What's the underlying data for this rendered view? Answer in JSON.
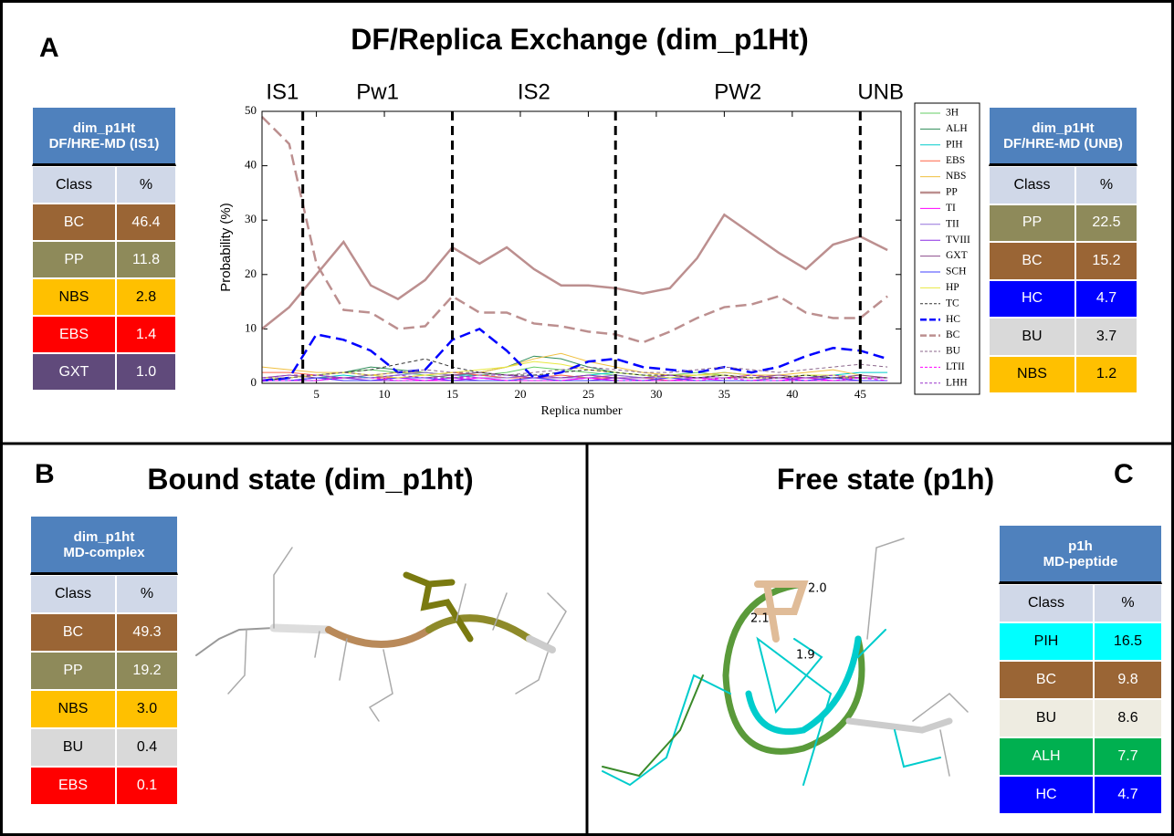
{
  "panels": [
    {
      "letter": "A",
      "title": "DF/Replica Exchange (dim_p1Ht)"
    },
    {
      "letter": "B",
      "title": "Bound state (dim_p1ht)"
    },
    {
      "letter": "C",
      "title": "Free state (p1h)"
    }
  ],
  "tables": [
    {
      "header": [
        "dim_p1Ht",
        "DF/HRE-MD (IS1)"
      ],
      "columns": [
        "Class",
        "%"
      ],
      "rows": [
        {
          "class": "BC",
          "value": "46.4",
          "color": "#9a6535"
        },
        {
          "class": "PP",
          "value": "11.8",
          "color": "#8e8a5a"
        },
        {
          "class": "NBS",
          "value": "2.8",
          "color": "#ffc000"
        },
        {
          "class": "EBS",
          "value": "1.4",
          "color": "#ff0000"
        },
        {
          "class": "GXT",
          "value": "1.0",
          "color": "#604a7b"
        }
      ]
    },
    {
      "header": [
        "dim_p1Ht",
        "DF/HRE-MD (UNB)"
      ],
      "columns": [
        "Class",
        "%"
      ],
      "rows": [
        {
          "class": "PP",
          "value": "22.5",
          "color": "#8e8a5a"
        },
        {
          "class": "BC",
          "value": "15.2",
          "color": "#9a6535"
        },
        {
          "class": "HC",
          "value": "4.7",
          "color": "#0000ff"
        },
        {
          "class": "BU",
          "value": "3.7",
          "color": "#d9d9d9"
        },
        {
          "class": "NBS",
          "value": "1.2",
          "color": "#ffc000"
        }
      ]
    },
    {
      "header": [
        "dim_p1ht",
        "MD-complex"
      ],
      "columns": [
        "Class",
        "%"
      ],
      "rows": [
        {
          "class": "BC",
          "value": "49.3",
          "color": "#9a6535"
        },
        {
          "class": "PP",
          "value": "19.2",
          "color": "#8e8a5a"
        },
        {
          "class": "NBS",
          "value": "3.0",
          "color": "#ffc000"
        },
        {
          "class": "BU",
          "value": "0.4",
          "color": "#d9d9d9"
        },
        {
          "class": "EBS",
          "value": "0.1",
          "color": "#ff0000"
        }
      ]
    },
    {
      "header": [
        "p1h",
        "MD-peptide"
      ],
      "columns": [
        "Class",
        "%"
      ],
      "rows": [
        {
          "class": "PIH",
          "value": "16.5",
          "color": "#00ffff"
        },
        {
          "class": "BC",
          "value": "9.8",
          "color": "#9a6535"
        },
        {
          "class": "BU",
          "value": "8.6",
          "color": "#eeece1"
        },
        {
          "class": "ALH",
          "value": "7.7",
          "color": "#00b050"
        },
        {
          "class": "HC",
          "value": "4.7",
          "color": "#0000ff"
        }
      ]
    }
  ],
  "distance_labels": [
    "2.0",
    "2.1",
    "1.9"
  ],
  "chart_data": {
    "type": "line",
    "xlabel": "Replica number",
    "ylabel": "Probability (%)",
    "xlim": [
      1,
      48
    ],
    "ylim": [
      0,
      50
    ],
    "xticks": [
      5,
      10,
      15,
      20,
      25,
      30,
      35,
      40,
      45
    ],
    "yticks": [
      0,
      10,
      20,
      30,
      40,
      50
    ],
    "vlines": [
      4,
      15,
      27,
      45
    ],
    "regions": [
      "IS1",
      "Pw1",
      "IS2",
      "PW2",
      "UNB"
    ],
    "x": [
      1,
      3,
      5,
      7,
      9,
      11,
      13,
      15,
      17,
      19,
      21,
      23,
      25,
      27,
      29,
      31,
      33,
      35,
      37,
      39,
      41,
      43,
      45,
      47
    ],
    "series": [
      {
        "name": "3H",
        "color": "#66cc66",
        "dashed": false,
        "width": 1,
        "values": [
          1,
          1,
          1.5,
          2,
          2.5,
          2,
          1.5,
          1,
          1.5,
          2,
          3,
          2.5,
          2,
          1.5,
          1,
          1.5,
          2,
          1.5,
          1,
          1,
          1.5,
          1,
          1,
          1
        ]
      },
      {
        "name": "ALH",
        "color": "#2e8b57",
        "dashed": false,
        "width": 1,
        "values": [
          0.5,
          1,
          1.5,
          2,
          3,
          2.5,
          2,
          1.5,
          2,
          3,
          5,
          4.5,
          3,
          2,
          1.5,
          1,
          1,
          1.5,
          1,
          1,
          1.5,
          1.5,
          1,
          1
        ]
      },
      {
        "name": "PIH",
        "color": "#00cccc",
        "dashed": false,
        "width": 1,
        "values": [
          0.5,
          0.5,
          1,
          1.5,
          1,
          1.5,
          2,
          1.5,
          1.5,
          1,
          1,
          1,
          1.5,
          2,
          1.5,
          1,
          1.5,
          2,
          1.5,
          1,
          1,
          1.5,
          2,
          2
        ]
      },
      {
        "name": "EBS",
        "color": "#ff6347",
        "dashed": false,
        "width": 1,
        "values": [
          2,
          2,
          1.5,
          1,
          1,
          1,
          1.5,
          2,
          1.5,
          1,
          1,
          1.5,
          1,
          1,
          1,
          0.5,
          1,
          1,
          1.5,
          1,
          1,
          1,
          1,
          1
        ]
      },
      {
        "name": "NBS",
        "color": "#f0c040",
        "dashed": false,
        "width": 1,
        "values": [
          3,
          2.5,
          2,
          2,
          1.5,
          2,
          2,
          1.5,
          2,
          3,
          4.5,
          5.5,
          4,
          3,
          2,
          1.5,
          1.5,
          2,
          1.5,
          1.5,
          2,
          2.5,
          1.5,
          1
        ]
      },
      {
        "name": "PP",
        "color": "#bc8f8f",
        "dashed": false,
        "width": 2.5,
        "values": [
          10,
          14,
          20,
          26,
          18,
          15.5,
          19,
          25,
          22,
          25,
          21,
          18,
          18,
          17.5,
          16.5,
          17.5,
          23,
          31,
          27.5,
          24,
          21,
          25.5,
          27,
          24.5
        ]
      },
      {
        "name": "TI",
        "color": "#ff00ff",
        "dashed": false,
        "width": 1,
        "values": [
          0.5,
          0.5,
          1,
          0.5,
          0.5,
          1,
          0.5,
          0.5,
          1,
          0.5,
          0.5,
          0.5,
          1,
          0.5,
          0.5,
          0.5,
          1,
          0.5,
          0.5,
          0.5,
          1,
          0.5,
          0.5,
          0.5
        ]
      },
      {
        "name": "TII",
        "color": "#9370db",
        "dashed": false,
        "width": 1,
        "values": [
          1,
          1,
          1.5,
          1,
          1,
          1.5,
          2,
          1.5,
          1,
          1,
          1.5,
          1,
          1,
          1.5,
          1,
          1,
          1,
          1.5,
          1,
          1,
          1,
          1.5,
          1,
          1
        ]
      },
      {
        "name": "TVIII",
        "color": "#8a2be2",
        "dashed": false,
        "width": 1,
        "values": [
          0.5,
          0.5,
          0.5,
          1,
          0.5,
          0.5,
          0.5,
          1,
          0.5,
          0.5,
          0.5,
          0.5,
          0.5,
          1,
          0.5,
          0.5,
          0.5,
          0.5,
          0.5,
          1,
          0.5,
          0.5,
          0.5,
          0.5
        ]
      },
      {
        "name": "GXT",
        "color": "#8b4c8b",
        "dashed": false,
        "width": 1,
        "values": [
          1,
          1.5,
          1,
          1,
          1.5,
          1,
          1,
          1.5,
          2,
          1.5,
          1,
          1,
          1.5,
          1,
          1,
          1.5,
          1,
          1,
          1,
          1.5,
          1,
          1,
          1.5,
          1
        ]
      },
      {
        "name": "SCH",
        "color": "#4040ff",
        "dashed": false,
        "width": 1,
        "values": [
          0.5,
          0.5,
          1,
          0.5,
          0.5,
          1,
          1,
          0.5,
          0.5,
          0.5,
          1,
          0.5,
          0.5,
          0.5,
          0.5,
          1,
          0.5,
          0.5,
          0.5,
          0.5,
          0.5,
          1,
          0.5,
          0.5
        ]
      },
      {
        "name": "HP",
        "color": "#e8e840",
        "dashed": false,
        "width": 1,
        "values": [
          1,
          1,
          1.5,
          2,
          1.5,
          1,
          1.5,
          2,
          2.5,
          3,
          4,
          3.5,
          2.5,
          2,
          1.5,
          1,
          1.5,
          1.5,
          1,
          1,
          1.5,
          1.5,
          1,
          1
        ]
      },
      {
        "name": "TC",
        "color": "#333333",
        "dashed": true,
        "width": 1,
        "values": [
          0.5,
          1,
          1.5,
          2,
          2.5,
          3.5,
          4.5,
          3,
          2,
          1.5,
          1.5,
          2,
          2.5,
          2,
          1.5,
          1.5,
          1,
          1.5,
          1,
          1,
          1.5,
          1,
          1,
          1
        ]
      },
      {
        "name": "HC",
        "color": "#0000ff",
        "dashed": true,
        "width": 2.5,
        "values": [
          0.5,
          1,
          9,
          8,
          6,
          2,
          2.5,
          8,
          10,
          6,
          1,
          2,
          4,
          4.5,
          3,
          2.5,
          2,
          3,
          2,
          3,
          5,
          6.5,
          6,
          4.5
        ]
      },
      {
        "name": "BC",
        "color": "#bc8f8f",
        "dashed": true,
        "width": 2.5,
        "values": [
          49,
          44,
          22,
          13.5,
          13,
          10,
          10.5,
          16,
          13,
          13,
          11,
          10.5,
          9.5,
          9,
          7.5,
          9.5,
          12,
          14,
          14.5,
          16,
          13,
          12,
          12,
          16
        ]
      },
      {
        "name": "BU",
        "color": "#8b668b",
        "dashed": true,
        "width": 1,
        "values": [
          1,
          1,
          1.5,
          2,
          1.5,
          2,
          2.5,
          2,
          2,
          1.5,
          2,
          2.5,
          3,
          2.5,
          2,
          2,
          2.5,
          3,
          2.5,
          2,
          2.5,
          3,
          3.5,
          3
        ]
      },
      {
        "name": "LTII",
        "color": "#ff00ff",
        "dashed": true,
        "width": 1,
        "values": [
          0.5,
          0.5,
          0.5,
          1,
          1,
          0.5,
          0.5,
          1,
          1,
          0.5,
          0.5,
          0.5,
          1,
          0.5,
          0.5,
          0.5,
          0.5,
          1,
          0.5,
          0.5,
          0.5,
          0.5,
          1,
          0.5
        ]
      },
      {
        "name": "LHH",
        "color": "#9932cc",
        "dashed": true,
        "width": 1,
        "values": [
          1,
          1.5,
          1.5,
          1,
          1,
          1.5,
          1,
          1,
          1.5,
          1.5,
          1,
          1,
          1.5,
          1,
          1,
          1.5,
          1,
          1,
          1.5,
          1,
          1,
          1.5,
          1,
          1
        ]
      }
    ]
  }
}
